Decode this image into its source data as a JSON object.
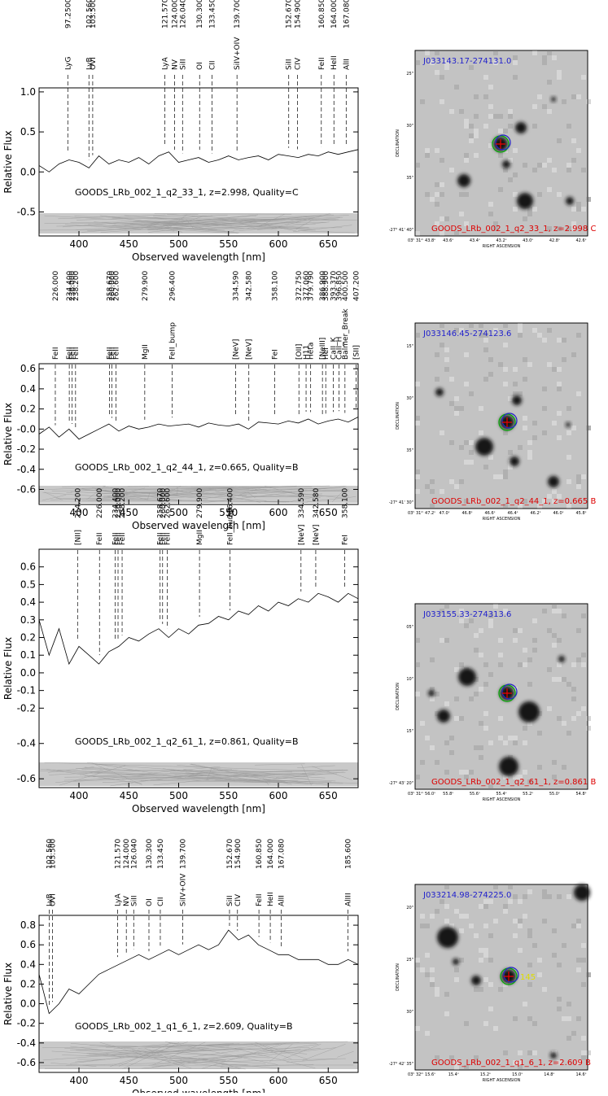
{
  "chart_data": [
    {
      "type": "line",
      "annotation": "GOODS_LRb_002_1_q2_33_1, z=2.998, Quality=C",
      "xlabel": "Observed wavelength [nm]",
      "ylabel": "Relative Flux",
      "color": "#000000",
      "xlim": [
        360,
        680
      ],
      "xticks": [
        400,
        450,
        500,
        550,
        600,
        650
      ],
      "ylim": [
        -0.8,
        1.05
      ],
      "yticks": [
        {
          "value": -0.5,
          "label": "-0.5"
        },
        {
          "value": 0,
          "label": "0.0"
        },
        {
          "value": 0.5,
          "label": "0.5"
        },
        {
          "value": 1,
          "label": "1.0"
        }
      ],
      "x": [
        360,
        370,
        380,
        390,
        400,
        410,
        420,
        430,
        440,
        450,
        460,
        470,
        480,
        490,
        500,
        510,
        520,
        530,
        540,
        550,
        560,
        570,
        580,
        590,
        600,
        610,
        620,
        630,
        640,
        650,
        660,
        670,
        680
      ],
      "values": [
        0.08,
        0.0,
        0.1,
        0.15,
        0.12,
        0.05,
        0.2,
        0.1,
        0.15,
        0.12,
        0.18,
        0.1,
        0.2,
        0.25,
        0.12,
        0.15,
        0.18,
        0.12,
        0.15,
        0.2,
        0.15,
        0.18,
        0.2,
        0.15,
        0.22,
        0.2,
        0.18,
        0.22,
        0.2,
        0.25,
        0.22,
        0.25,
        0.28
      ],
      "lines": [
        {
          "name": "LyG",
          "rest": {
            "value": 97.25,
            "label": "97.2500"
          },
          "x": 388.8
        },
        {
          "name": "LyB",
          "rest": {
            "value": 102.56,
            "label": "102.560"
          },
          "x": 410.0
        },
        {
          "name": "OVI",
          "rest": {
            "value": 103.5,
            "label": "103.500"
          },
          "x": 413.8
        },
        {
          "name": "LyA",
          "rest": {
            "value": 121.57,
            "label": "121.570"
          },
          "x": 486.0
        },
        {
          "name": "NV",
          "rest": {
            "value": 124,
            "label": "124.000"
          },
          "x": 495.8
        },
        {
          "name": "SiII",
          "rest": {
            "value": 126.04,
            "label": "126.040"
          },
          "x": 503.9
        },
        {
          "name": "OI",
          "rest": {
            "value": 130.3,
            "label": "130.300"
          },
          "x": 521.0
        },
        {
          "name": "CII",
          "rest": {
            "value": 133.45,
            "label": "133.450"
          },
          "x": 533.5
        },
        {
          "name": "SiIV+OIV",
          "rest": {
            "value": 139.7,
            "label": "139.700"
          },
          "x": 558.5
        },
        {
          "name": "SiII",
          "rest": {
            "value": 152.67,
            "label": "152.670"
          },
          "x": 610.4
        },
        {
          "name": "CIV",
          "rest": {
            "value": 154.9,
            "label": "154.900"
          },
          "x": 619.3
        },
        {
          "name": "FeII",
          "rest": {
            "value": 160.85,
            "label": "160.850"
          },
          "x": 643.1
        },
        {
          "name": "HeII",
          "rest": {
            "value": 164,
            "label": "164.000"
          },
          "x": 655.7
        },
        {
          "name": "AlII",
          "rest": {
            "value": 167.08,
            "label": "167.080"
          },
          "x": 668.0
        }
      ]
    },
    {
      "type": "line",
      "annotation": "GOODS_LRb_002_1_q2_44_1, z=0.665, Quality=B",
      "xlabel": "Observed wavelength [nm]",
      "ylabel": "Relative Flux",
      "color": "#000000",
      "xlim": [
        360,
        680
      ],
      "xticks": [
        400,
        450,
        500,
        550,
        600,
        650
      ],
      "ylim": [
        -0.75,
        0.65
      ],
      "yticks": [
        {
          "value": -0.6,
          "label": "-0.6"
        },
        {
          "value": -0.4,
          "label": "-0.4"
        },
        {
          "value": -0.2,
          "label": "-0.2"
        },
        {
          "value": 0,
          "label": "-0.0"
        },
        {
          "value": 0.2,
          "label": "0.2"
        },
        {
          "value": 0.4,
          "label": "0.4"
        },
        {
          "value": 0.6,
          "label": "0.6"
        }
      ],
      "x": [
        360,
        370,
        380,
        390,
        400,
        410,
        420,
        430,
        440,
        450,
        460,
        470,
        480,
        490,
        500,
        510,
        520,
        530,
        540,
        550,
        560,
        570,
        580,
        590,
        600,
        610,
        620,
        630,
        640,
        650,
        660,
        670,
        680
      ],
      "values": [
        -0.05,
        0.02,
        -0.08,
        0.0,
        -0.1,
        -0.05,
        0.0,
        0.05,
        -0.02,
        0.03,
        0.0,
        0.02,
        0.05,
        0.03,
        0.04,
        0.05,
        0.02,
        0.06,
        0.04,
        0.03,
        0.05,
        0.0,
        0.07,
        0.06,
        0.05,
        0.08,
        0.06,
        0.1,
        0.05,
        0.08,
        0.1,
        0.07,
        0.12
      ],
      "lines": [
        {
          "name": "FeII",
          "rest": {
            "value": 226,
            "label": "226.000"
          },
          "x": 376.3
        },
        {
          "name": "FeII",
          "rest": {
            "value": 234.4,
            "label": "234.400"
          },
          "x": 390.3
        },
        {
          "name": "FeII",
          "rest": {
            "value": 236,
            "label": "236.000"
          },
          "x": 393.0
        },
        {
          "name": "FeII",
          "rest": {
            "value": 238.2,
            "label": "238.200"
          },
          "x": 396.6
        },
        {
          "name": "FeII",
          "rest": {
            "value": 258.67,
            "label": "258.670"
          },
          "x": 430.7
        },
        {
          "name": "FeII",
          "rest": {
            "value": 260,
            "label": "260.000"
          },
          "x": 432.9
        },
        {
          "name": "FeII",
          "rest": {
            "value": 262.6,
            "label": "262.600"
          },
          "x": 437.2
        },
        {
          "name": "MgII",
          "rest": {
            "value": 279.9,
            "label": "279.900"
          },
          "x": 466.0
        },
        {
          "name": "FeII_bump",
          "rest": {
            "value": 296.4,
            "label": "296.400"
          },
          "x": 493.5
        },
        {
          "name": "[NeV]",
          "rest": {
            "value": 334.59,
            "label": "334.590"
          },
          "x": 557.1
        },
        {
          "name": "[NeV]",
          "rest": {
            "value": 342.58,
            "label": "342.580"
          },
          "x": 570.4
        },
        {
          "name": "FeI",
          "rest": {
            "value": 358.1,
            "label": "358.100"
          },
          "x": 596.2
        },
        {
          "name": "[OII]",
          "rest": {
            "value": 372.75,
            "label": "372.750"
          },
          "x": 620.6
        },
        {
          "name": "H11",
          "rest": {
            "value": 377.06,
            "label": "377.060"
          },
          "x": 627.8
        },
        {
          "name": "Heta",
          "rest": {
            "value": 379.79,
            "label": "379.790"
          },
          "x": 632.4
        },
        {
          "name": "[NeIII]",
          "rest": {
            "value": 386.9,
            "label": "386.900"
          },
          "x": 644.2
        },
        {
          "name": "HeI",
          "rest": {
            "value": 388.9,
            "label": "388.900"
          },
          "x": 647.5
        },
        {
          "name": "CaII_K",
          "rest": {
            "value": 393.37,
            "label": "393.370"
          },
          "x": 655.0
        },
        {
          "name": "CaII_H",
          "rest": {
            "value": 396.85,
            "label": "396.850"
          },
          "x": 660.8
        },
        {
          "name": "Balmer_Break",
          "rest": {
            "value": 400.5,
            "label": "400.500"
          },
          "x": 666.8
        },
        {
          "name": "[SII]",
          "rest": {
            "value": 407.2,
            "label": "407.200"
          },
          "x": 678.0
        }
      ]
    },
    {
      "type": "line",
      "annotation": "GOODS_LRb_002_1_q2_61_1, z=0.861, Quality=B",
      "xlabel": "Observed wavelength [nm]",
      "ylabel": "Relative Flux",
      "color": "#000000",
      "xlim": [
        360,
        680
      ],
      "xticks": [
        400,
        450,
        500,
        550,
        600,
        650
      ],
      "ylim": [
        -0.65,
        0.7
      ],
      "yticks": [
        {
          "value": -0.6,
          "label": "-0.6"
        },
        {
          "value": -0.4,
          "label": "-0.4"
        },
        {
          "value": -0.2,
          "label": "-0.2"
        },
        {
          "value": -0.1,
          "label": "-0.1"
        },
        {
          "value": 0,
          "label": "0.0"
        },
        {
          "value": 0.1,
          "label": "0.1"
        },
        {
          "value": 0.2,
          "label": "0.2"
        },
        {
          "value": 0.3,
          "label": "0.3"
        },
        {
          "value": 0.4,
          "label": "0.4"
        },
        {
          "value": 0.5,
          "label": "0.5"
        },
        {
          "value": 0.6,
          "label": "0.6"
        }
      ],
      "x": [
        360,
        370,
        380,
        390,
        400,
        410,
        420,
        430,
        440,
        450,
        460,
        470,
        480,
        490,
        500,
        510,
        520,
        530,
        540,
        550,
        560,
        570,
        580,
        590,
        600,
        610,
        620,
        630,
        640,
        650,
        660,
        670,
        680
      ],
      "values": [
        0.3,
        0.1,
        0.25,
        0.05,
        0.15,
        0.1,
        0.05,
        0.12,
        0.15,
        0.2,
        0.18,
        0.22,
        0.25,
        0.2,
        0.25,
        0.22,
        0.27,
        0.28,
        0.32,
        0.3,
        0.35,
        0.33,
        0.38,
        0.35,
        0.4,
        0.38,
        0.42,
        0.4,
        0.45,
        0.43,
        0.4,
        0.45,
        0.42
      ],
      "lines": [
        {
          "name": "[NII]",
          "rest": {
            "value": 214.2,
            "label": "214.200"
          },
          "x": 398.6
        },
        {
          "name": "FeII",
          "rest": {
            "value": 226,
            "label": "226.000"
          },
          "x": 420.6
        },
        {
          "name": "FeII",
          "rest": {
            "value": 234.4,
            "label": "234.400"
          },
          "x": 436.2
        },
        {
          "name": "FeII",
          "rest": {
            "value": 236,
            "label": "236.000"
          },
          "x": 439.2
        },
        {
          "name": "FeII",
          "rest": {
            "value": 238.2,
            "label": "238.200"
          },
          "x": 443.3
        },
        {
          "name": "FeII",
          "rest": {
            "value": 258.67,
            "label": "258.670"
          },
          "x": 481.4
        },
        {
          "name": "FeII",
          "rest": {
            "value": 260,
            "label": "260.000"
          },
          "x": 483.9
        },
        {
          "name": "FeII",
          "rest": {
            "value": 262.6,
            "label": "262.600"
          },
          "x": 488.7
        },
        {
          "name": "MgII",
          "rest": {
            "value": 279.9,
            "label": "279.900"
          },
          "x": 520.9
        },
        {
          "name": "FeII_bump",
          "rest": {
            "value": 296.4,
            "label": "296.400"
          },
          "x": 551.6
        },
        {
          "name": "[NeV]",
          "rest": {
            "value": 334.59,
            "label": "334.590"
          },
          "x": 622.7
        },
        {
          "name": "[NeV]",
          "rest": {
            "value": 342.58,
            "label": "342.580"
          },
          "x": 637.5
        },
        {
          "name": "FeI",
          "rest": {
            "value": 358.1,
            "label": "358.100"
          },
          "x": 666.4
        }
      ]
    },
    {
      "type": "line",
      "annotation": "GOODS_LRb_002_1_q1_6_1, z=2.609, Quality=B",
      "xlabel": "Observed wavelength [nm]",
      "ylabel": "Relative Flux",
      "color": "#000000",
      "xlim": [
        360,
        680
      ],
      "xticks": [
        400,
        450,
        500,
        550,
        600,
        650
      ],
      "ylim": [
        -0.7,
        0.9
      ],
      "yticks": [
        {
          "value": -0.6,
          "label": "-0.6"
        },
        {
          "value": -0.4,
          "label": "-0.4"
        },
        {
          "value": -0.2,
          "label": "-0.2"
        },
        {
          "value": 0,
          "label": "0.0"
        },
        {
          "value": 0.2,
          "label": "0.2"
        },
        {
          "value": 0.4,
          "label": "0.4"
        },
        {
          "value": 0.6,
          "label": "0.6"
        },
        {
          "value": 0.8,
          "label": "0.8"
        }
      ],
      "x": [
        360,
        370,
        380,
        390,
        400,
        410,
        420,
        430,
        440,
        450,
        460,
        470,
        480,
        490,
        500,
        510,
        520,
        530,
        540,
        550,
        560,
        570,
        580,
        590,
        600,
        610,
        620,
        630,
        640,
        650,
        660,
        670,
        680
      ],
      "values": [
        0.3,
        -0.1,
        0.0,
        0.15,
        0.1,
        0.2,
        0.3,
        0.35,
        0.4,
        0.45,
        0.5,
        0.45,
        0.5,
        0.55,
        0.5,
        0.55,
        0.6,
        0.55,
        0.6,
        0.75,
        0.65,
        0.7,
        0.6,
        0.55,
        0.5,
        0.5,
        0.45,
        0.45,
        0.45,
        0.4,
        0.4,
        0.45,
        0.4
      ],
      "lines": [
        {
          "name": "LyB",
          "rest": {
            "value": 102.56,
            "label": "102.560"
          },
          "x": 370.1
        },
        {
          "name": "OVI",
          "rest": {
            "value": 103.5,
            "label": "103.500"
          },
          "x": 373.5
        },
        {
          "name": "LyA",
          "rest": {
            "value": 121.57,
            "label": "121.570"
          },
          "x": 438.7
        },
        {
          "name": "NV",
          "rest": {
            "value": 124,
            "label": "124.000"
          },
          "x": 447.5
        },
        {
          "name": "SiII",
          "rest": {
            "value": 126.04,
            "label": "126.040"
          },
          "x": 454.9
        },
        {
          "name": "OI",
          "rest": {
            "value": 130.3,
            "label": "130.300"
          },
          "x": 470.2
        },
        {
          "name": "CII",
          "rest": {
            "value": 133.45,
            "label": "133.450"
          },
          "x": 481.6
        },
        {
          "name": "SiIV+OIV",
          "rest": {
            "value": 139.7,
            "label": "139.700"
          },
          "x": 504.2
        },
        {
          "name": "SiII",
          "rest": {
            "value": 152.67,
            "label": "152.670"
          },
          "x": 551.0
        },
        {
          "name": "CIV",
          "rest": {
            "value": 154.9,
            "label": "154.900"
          },
          "x": 559.0
        },
        {
          "name": "FeII",
          "rest": {
            "value": 160.85,
            "label": "160.850"
          },
          "x": 580.5
        },
        {
          "name": "HeII",
          "rest": {
            "value": 164,
            "label": "164.000"
          },
          "x": 591.9
        },
        {
          "name": "AlII",
          "rest": {
            "value": 167.08,
            "label": "167.080"
          },
          "x": 603.0
        },
        {
          "name": "AlIII",
          "rest": {
            "value": 185.6,
            "label": "185.600"
          },
          "x": 669.8
        }
      ]
    }
  ],
  "cutouts": [
    {
      "id": "J033143.17-274131.0",
      "label": "GOODS_LRb_002_1_q2_33_1, z=2.998 C",
      "ylabel": "DECLINATION",
      "xlabel": "RIGHT ASCENSION",
      "yticks": [
        "25\"",
        "30\"",
        "35\"",
        "-27° 41' 40\""
      ],
      "xticks": [
        "03ʰ 31ᵐ 43.8ˢ",
        "43.6ˢ",
        "43.4ˢ",
        "43.2ˢ",
        "43.0ˢ",
        "42.8ˢ",
        "42.6ˢ"
      ]
    },
    {
      "id": "J033146.45-274123.6",
      "label": "GOODS_LRb_002_1_q2_44_1, z=0.665 B",
      "ylabel": "DECLINATION",
      "xlabel": "RIGHT ASCENSION",
      "yticks": [
        "15\"",
        "30\"",
        "35\"",
        "-27° 41' 30\""
      ],
      "xticks": [
        "03ʰ 31ᵐ 47.2ˢ",
        "47.0ˢ",
        "46.8ˢ",
        "46.6ˢ",
        "46.4ˢ",
        "46.2ˢ",
        "46.0ˢ",
        "45.8ˢ"
      ]
    },
    {
      "id": "J033155.33-274313.6",
      "label": "GOODS_LRb_002_1_q2_61_1, z=0.861 B",
      "ylabel": "DECLINATION",
      "xlabel": "RIGHT ASCENSION",
      "yticks": [
        "05\"",
        "10\"",
        "15\"",
        "-27° 43' 20\""
      ],
      "xticks": [
        "03ʰ 31ᵐ 56.0ˢ",
        "55.8ˢ",
        "55.6ˢ",
        "55.4ˢ",
        "55.2ˢ",
        "55.0ˢ",
        "54.8ˢ"
      ]
    },
    {
      "id": "J033214.98-274225.0",
      "label": "GOODS_LRb_002_1_q1_6_1, z=2.609 B",
      "ylabel": "DECLINATION",
      "xlabel": "RIGHT ASCENSION",
      "marker": "145",
      "yticks": [
        "20\"",
        "25\"",
        "30\"",
        "-27° 42' 35\""
      ],
      "xticks": [
        "03ʰ 32ᵐ 15.6ˢ",
        "15.4ˢ",
        "15.2ˢ",
        "15.0ˢ",
        "14.8ˢ",
        "14.6ˢ"
      ]
    }
  ]
}
